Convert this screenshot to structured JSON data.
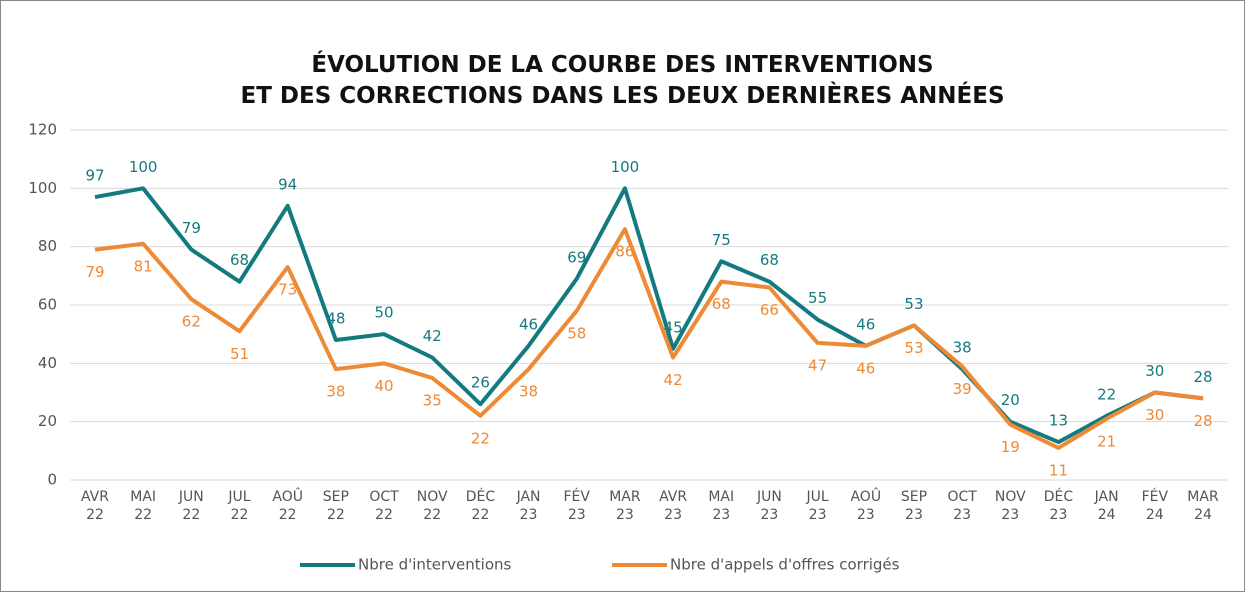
{
  "chart_data": {
    "type": "line",
    "title": "ÉVOLUTION DE LA COURBE DES INTERVENTIONS\nET DES CORRECTIONS DANS LES DEUX DERNIÈRES ANNÉES",
    "categories": [
      "AVR\n22",
      "MAI\n22",
      "JUN\n22",
      "JUL\n22",
      "AOÛ\n22",
      "SEP\n22",
      "OCT\n22",
      "NOV\n22",
      "DÉC\n22",
      "JAN\n23",
      "FÉV\n23",
      "MAR\n23",
      "AVR\n23",
      "MAI\n23",
      "JUN\n23",
      "JUL\n23",
      "AOÛ\n23",
      "SEP\n23",
      "OCT\n23",
      "NOV\n23",
      "DÉC\n23",
      "JAN\n24",
      "FÉV\n24",
      "MAR\n24"
    ],
    "series": [
      {
        "name": "Nbre d'interventions",
        "color": "#137a80",
        "values": [
          97,
          100,
          79,
          68,
          94,
          48,
          50,
          42,
          26,
          46,
          69,
          100,
          45,
          75,
          68,
          55,
          46,
          53,
          38,
          20,
          13,
          22,
          30,
          28
        ]
      },
      {
        "name": "Nbre d'appels d'offres corrigés",
        "color": "#ee8a35",
        "values": [
          79,
          81,
          62,
          51,
          73,
          38,
          40,
          35,
          22,
          38,
          58,
          86,
          42,
          68,
          66,
          47,
          46,
          53,
          39,
          19,
          11,
          21,
          30,
          28
        ]
      }
    ],
    "ylim": [
      0,
      120
    ],
    "yticks": [
      0,
      20,
      40,
      60,
      80,
      100,
      120
    ],
    "grid": true,
    "legend": "bottom"
  }
}
